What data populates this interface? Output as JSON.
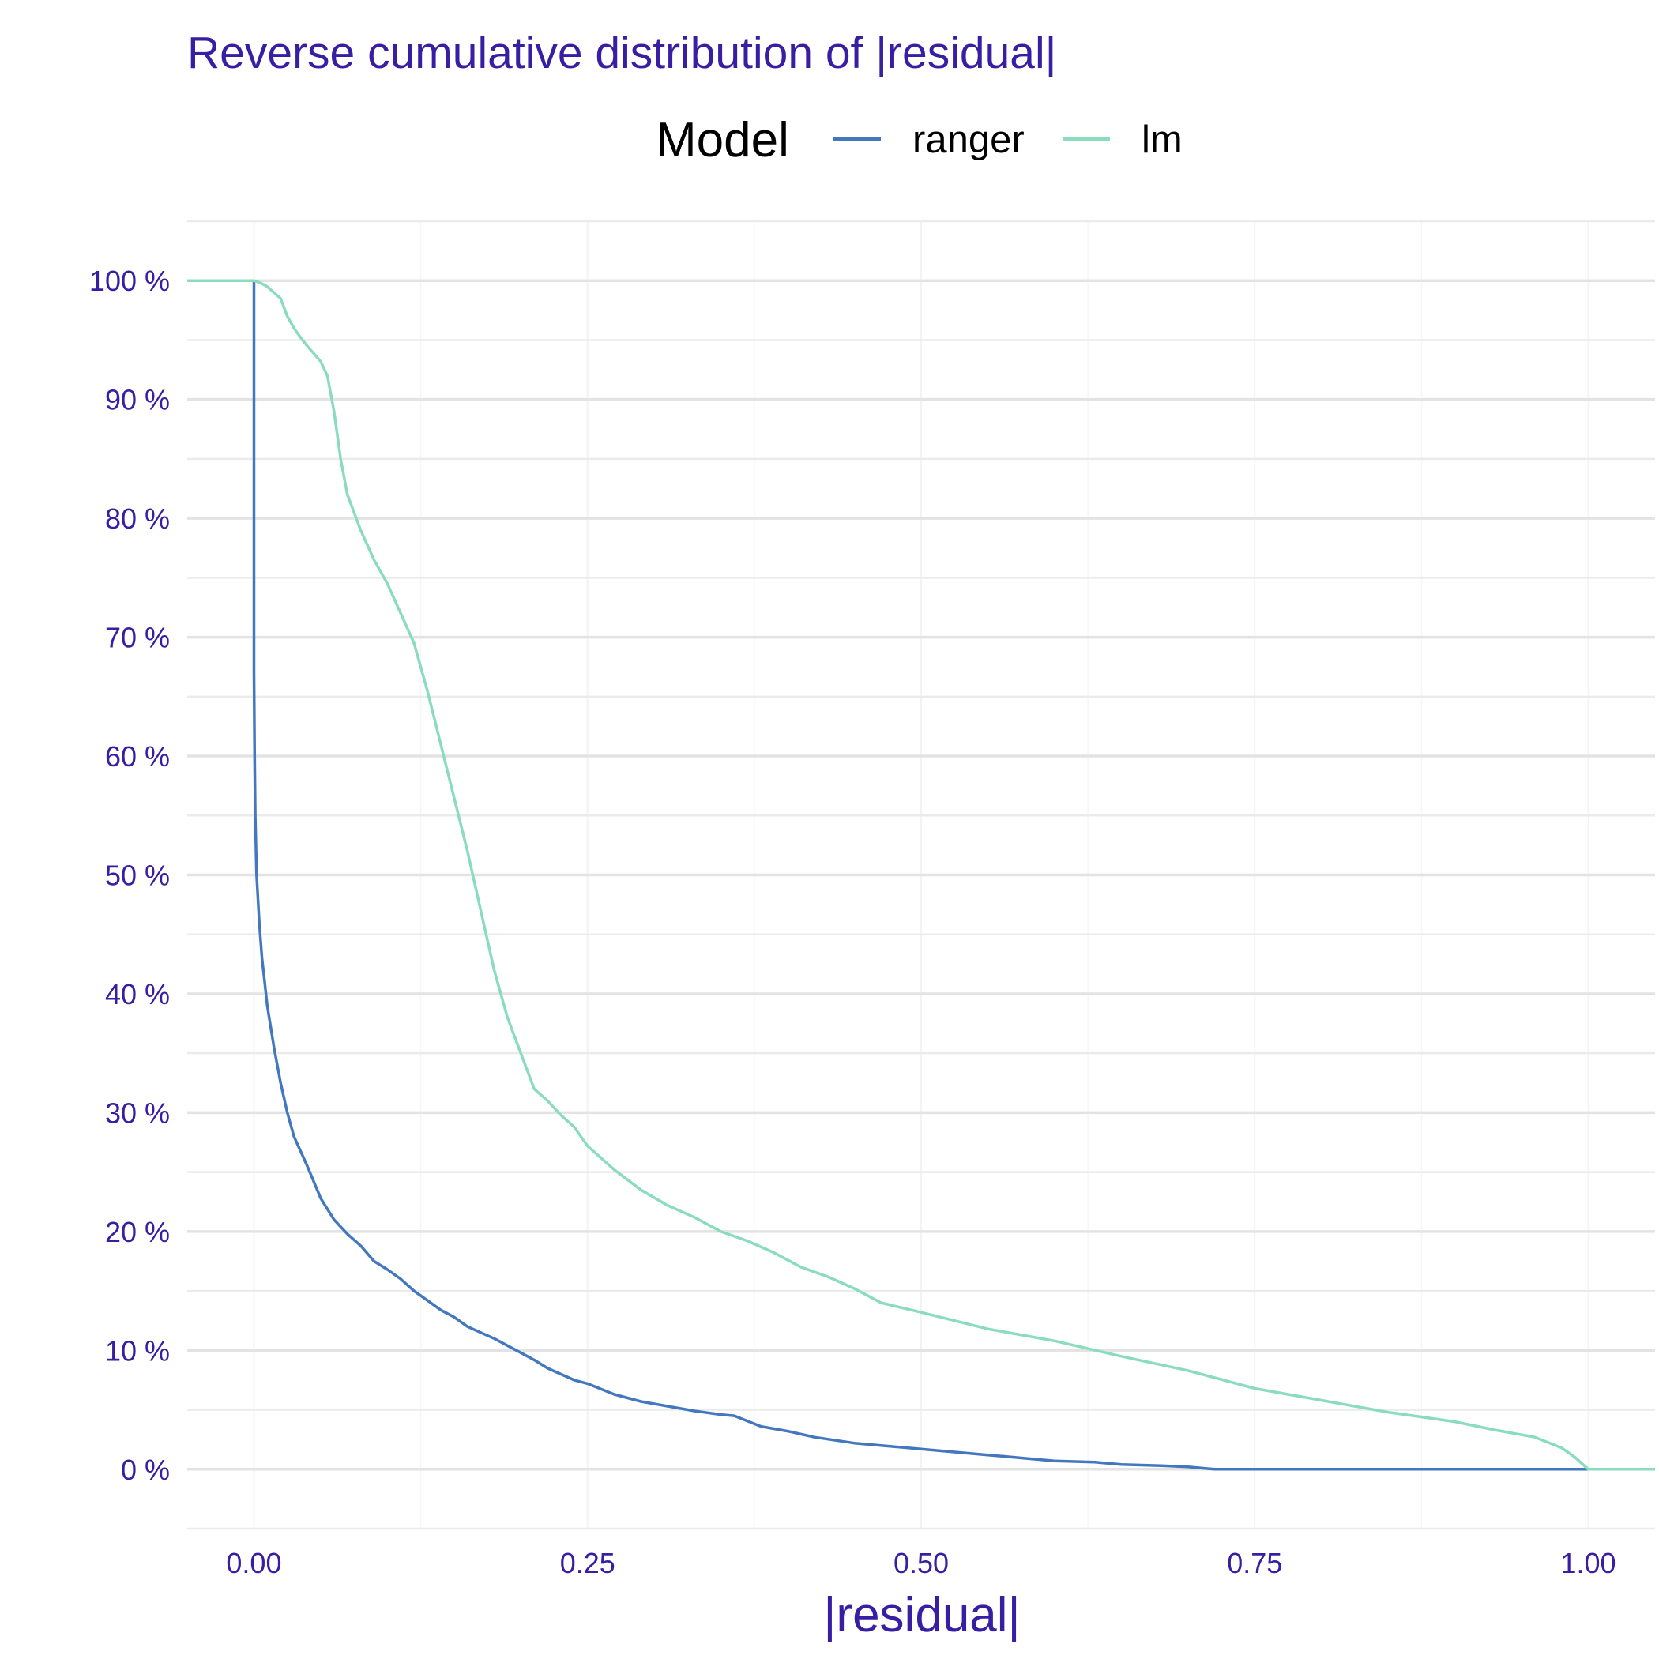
{
  "chart_data": {
    "type": "line",
    "title": "Reverse cumulative distribution of |residual|",
    "xlabel": "|residual|",
    "ylabel": "",
    "xlim": [
      -0.05,
      1.05
    ],
    "ylim": [
      -0.05,
      1.05
    ],
    "x_ticks": [
      0.0,
      0.25,
      0.5,
      0.75,
      1.0
    ],
    "x_tick_labels": [
      "0.00",
      "0.25",
      "0.50",
      "0.75",
      "1.00"
    ],
    "y_ticks": [
      0,
      0.1,
      0.2,
      0.3,
      0.4,
      0.5,
      0.6,
      0.7,
      0.8,
      0.9,
      1.0
    ],
    "y_tick_labels": [
      "0 %",
      "10 %",
      "20 %",
      "30 %",
      "40 %",
      "50 %",
      "60 %",
      "70 %",
      "80 %",
      "90 %",
      "100 %"
    ],
    "grid": true,
    "legend": {
      "title": "Model",
      "placement": "top"
    },
    "series": [
      {
        "name": "ranger",
        "color": "#4378bf",
        "x": [
          -0.05,
          0.0,
          0.0,
          0.0005,
          0.001,
          0.002,
          0.004,
          0.006,
          0.008,
          0.01,
          0.015,
          0.02,
          0.025,
          0.03,
          0.04,
          0.05,
          0.06,
          0.07,
          0.08,
          0.09,
          0.1,
          0.11,
          0.12,
          0.13,
          0.14,
          0.15,
          0.16,
          0.17,
          0.18,
          0.19,
          0.2,
          0.21,
          0.22,
          0.23,
          0.24,
          0.25,
          0.27,
          0.29,
          0.31,
          0.33,
          0.35,
          0.36,
          0.38,
          0.4,
          0.42,
          0.45,
          0.48,
          0.5,
          0.53,
          0.55,
          0.58,
          0.6,
          0.63,
          0.65,
          0.68,
          0.7,
          0.72,
          0.75,
          0.8,
          0.9,
          1.0,
          1.05
        ],
        "y": [
          1.0,
          1.0,
          0.67,
          0.6,
          0.55,
          0.5,
          0.46,
          0.43,
          0.41,
          0.39,
          0.355,
          0.325,
          0.3,
          0.28,
          0.255,
          0.228,
          0.21,
          0.198,
          0.188,
          0.175,
          0.168,
          0.16,
          0.15,
          0.142,
          0.134,
          0.128,
          0.12,
          0.115,
          0.11,
          0.104,
          0.098,
          0.092,
          0.085,
          0.08,
          0.075,
          0.072,
          0.063,
          0.057,
          0.053,
          0.049,
          0.046,
          0.045,
          0.036,
          0.032,
          0.027,
          0.022,
          0.019,
          0.017,
          0.014,
          0.012,
          0.009,
          0.007,
          0.006,
          0.004,
          0.003,
          0.002,
          0.0,
          0.0,
          0.0,
          0.0,
          0.0,
          0.0
        ]
      },
      {
        "name": "lm",
        "color": "#8bdcbe",
        "x": [
          -0.05,
          0.0,
          0.005,
          0.01,
          0.015,
          0.02,
          0.025,
          0.03,
          0.035,
          0.04,
          0.05,
          0.055,
          0.06,
          0.065,
          0.07,
          0.08,
          0.09,
          0.1,
          0.11,
          0.12,
          0.13,
          0.14,
          0.15,
          0.16,
          0.17,
          0.18,
          0.19,
          0.2,
          0.21,
          0.22,
          0.23,
          0.24,
          0.25,
          0.27,
          0.29,
          0.31,
          0.33,
          0.35,
          0.37,
          0.39,
          0.41,
          0.43,
          0.45,
          0.47,
          0.5,
          0.55,
          0.6,
          0.65,
          0.7,
          0.75,
          0.8,
          0.85,
          0.9,
          0.93,
          0.96,
          0.98,
          0.99,
          1.0,
          1.05
        ],
        "y": [
          1.0,
          1.0,
          0.998,
          0.995,
          0.99,
          0.985,
          0.97,
          0.96,
          0.952,
          0.945,
          0.932,
          0.92,
          0.89,
          0.85,
          0.82,
          0.79,
          0.765,
          0.745,
          0.72,
          0.695,
          0.655,
          0.61,
          0.565,
          0.52,
          0.47,
          0.42,
          0.38,
          0.35,
          0.32,
          0.31,
          0.298,
          0.288,
          0.272,
          0.252,
          0.235,
          0.222,
          0.212,
          0.2,
          0.192,
          0.182,
          0.17,
          0.162,
          0.152,
          0.14,
          0.132,
          0.118,
          0.108,
          0.095,
          0.083,
          0.068,
          0.058,
          0.048,
          0.04,
          0.033,
          0.027,
          0.018,
          0.01,
          0.0,
          0.0
        ]
      }
    ]
  }
}
